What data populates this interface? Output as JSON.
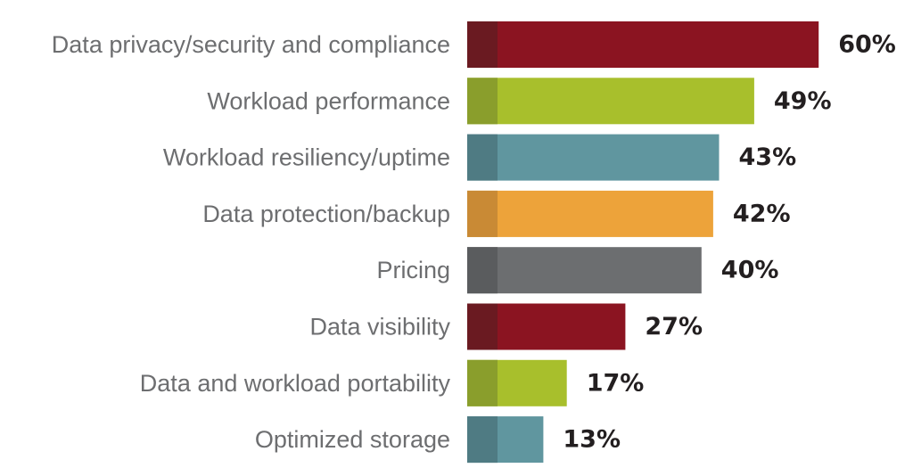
{
  "chart_data": {
    "type": "bar",
    "orientation": "horizontal",
    "categories": [
      "Data privacy/security and compliance",
      "Workload performance",
      "Workload resiliency/uptime",
      "Data protection/backup",
      "Pricing",
      "Data visibility",
      "Data and workload portability",
      "Optimized storage"
    ],
    "values": [
      60,
      49,
      43,
      42,
      40,
      27,
      17,
      13
    ],
    "value_labels": [
      "60%",
      "49%",
      "43%",
      "42%",
      "40%",
      "27%",
      "17%",
      "13%"
    ],
    "bar_colors": [
      "#8b1421",
      "#a8bf2c",
      "#60969f",
      "#eda33a",
      "#6c6e70",
      "#8b1421",
      "#a8bf2c",
      "#60969f"
    ],
    "bar_accent_colors": [
      "#6a1a21",
      "#8a9e2c",
      "#4f7b83",
      "#c98a35",
      "#5a5c5e",
      "#6a1a21",
      "#8a9e2c",
      "#4f7b83"
    ],
    "title": "",
    "xlabel": "",
    "ylabel": "",
    "xlim": [
      0,
      60
    ],
    "grid": false,
    "legend": "none"
  }
}
